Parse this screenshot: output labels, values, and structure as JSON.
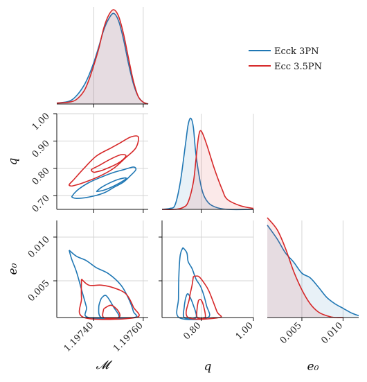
{
  "chart_data": {
    "type": "corner",
    "parameters": [
      {
        "key": "mchirp",
        "label": "𝓜",
        "range": [
          1.19725,
          1.19762
        ],
        "ticks": [
          1.1974,
          1.1976
        ],
        "tick_labels": [
          "1.19740",
          "1.19760"
        ]
      },
      {
        "key": "q",
        "label": "q",
        "range": [
          0.65,
          1.0
        ],
        "ticks": [
          0.7,
          0.8,
          0.9,
          1.0
        ],
        "tick_labels": [
          "0.70",
          "0.80",
          "0.90",
          "1.00"
        ],
        "x_ticks": [
          0.8,
          1.0
        ],
        "x_tick_labels": [
          "0.80",
          "1.00"
        ]
      },
      {
        "key": "e0",
        "label": "e₀",
        "range": [
          0.0008,
          0.0119
        ],
        "ticks": [
          0.005,
          0.01
        ],
        "tick_labels": [
          "0.005",
          "0.010"
        ]
      }
    ],
    "legend_position": "upper-right",
    "series": [
      {
        "name": "Ecck 3PN",
        "color": "#1f77b4",
        "mchirp_pdf": {
          "x": [
            1.19725,
            1.1973,
            1.19733,
            1.19736,
            1.19738,
            1.1974,
            1.19742,
            1.19744,
            1.19746,
            1.19748,
            1.1975,
            1.19752,
            1.19754,
            1.19756,
            1.19758,
            1.1976,
            1.19762
          ],
          "y": [
            0.01,
            0.03,
            0.09,
            0.2,
            0.31,
            0.45,
            0.62,
            0.8,
            0.92,
            0.98,
            0.9,
            0.7,
            0.44,
            0.22,
            0.08,
            0.02,
            0.0
          ]
        },
        "q_pdf": {
          "x": [
            0.65,
            0.68,
            0.7,
            0.72,
            0.74,
            0.75,
            0.76,
            0.77,
            0.78,
            0.8,
            0.82,
            0.85,
            0.9,
            1.0
          ],
          "y": [
            0.0,
            0.01,
            0.05,
            0.3,
            0.72,
            0.93,
            1.0,
            0.9,
            0.6,
            0.25,
            0.1,
            0.03,
            0.0,
            0.0
          ]
        },
        "e0_pdf": {
          "x": [
            0.0008,
            0.002,
            0.003,
            0.004,
            0.005,
            0.006,
            0.007,
            0.008,
            0.009,
            0.01,
            0.011,
            0.0119
          ],
          "y": [
            1.0,
            0.85,
            0.7,
            0.6,
            0.48,
            0.43,
            0.33,
            0.22,
            0.15,
            0.1,
            0.05,
            0.02
          ]
        },
        "contours_q_mchirp": [
          [
            [
              1.19731,
              0.695
            ],
            [
              1.19733,
              0.69
            ],
            [
              1.19738,
              0.695
            ],
            [
              1.19744,
              0.71
            ],
            [
              1.19748,
              0.73
            ],
            [
              1.19752,
              0.75
            ],
            [
              1.19755,
              0.775
            ],
            [
              1.19757,
              0.795
            ],
            [
              1.19756,
              0.805
            ],
            [
              1.19752,
              0.795
            ],
            [
              1.19748,
              0.785
            ],
            [
              1.19743,
              0.768
            ],
            [
              1.19738,
              0.748
            ],
            [
              1.19734,
              0.725
            ],
            [
              1.19732,
              0.708
            ],
            [
              1.19731,
              0.695
            ]
          ],
          [
            [
              1.19741,
              0.715
            ],
            [
              1.19744,
              0.72
            ],
            [
              1.19748,
              0.735
            ],
            [
              1.19752,
              0.755
            ],
            [
              1.19753,
              0.765
            ],
            [
              1.1975,
              0.76
            ],
            [
              1.19746,
              0.745
            ],
            [
              1.19743,
              0.73
            ],
            [
              1.19741,
              0.715
            ]
          ]
        ],
        "contours_e0_mchirp": [
          [
            [
              1.1973,
              0.0085
            ],
            [
              1.19733,
              0.0078
            ],
            [
              1.19737,
              0.0073
            ],
            [
              1.19741,
              0.0065
            ],
            [
              1.19746,
              0.0058
            ],
            [
              1.19751,
              0.0045
            ],
            [
              1.19754,
              0.003
            ],
            [
              1.19756,
              0.0015
            ],
            [
              1.19756,
              0.0008
            ],
            [
              1.19738,
              0.0008
            ],
            [
              1.19737,
              0.002
            ],
            [
              1.19735,
              0.004
            ],
            [
              1.19733,
              0.006
            ],
            [
              1.19731,
              0.0075
            ],
            [
              1.1973,
              0.0085
            ]
          ],
          [
            [
              1.19743,
              0.003
            ],
            [
              1.19745,
              0.0033
            ],
            [
              1.19748,
              0.002
            ],
            [
              1.1975,
              0.0008
            ],
            [
              1.19743,
              0.0008
            ],
            [
              1.19742,
              0.002
            ],
            [
              1.19743,
              0.003
            ]
          ]
        ],
        "contours_e0_q": [
          [
            [
              0.73,
              0.0088
            ],
            [
              0.745,
              0.0082
            ],
            [
              0.75,
              0.0072
            ],
            [
              0.765,
              0.0064
            ],
            [
              0.78,
              0.0052
            ],
            [
              0.8,
              0.0042
            ],
            [
              0.82,
              0.0022
            ],
            [
              0.825,
              0.0008
            ],
            [
              0.715,
              0.0008
            ],
            [
              0.713,
              0.003
            ],
            [
              0.715,
              0.006
            ],
            [
              0.72,
              0.008
            ],
            [
              0.73,
              0.0088
            ]
          ],
          [
            [
              0.74,
              0.003
            ],
            [
              0.75,
              0.0035
            ],
            [
              0.77,
              0.0022
            ],
            [
              0.78,
              0.0008
            ],
            [
              0.735,
              0.0008
            ],
            [
              0.735,
              0.002
            ],
            [
              0.74,
              0.003
            ]
          ]
        ]
      },
      {
        "name": "Ecc 3.5PN",
        "color": "#d62728",
        "mchirp_pdf": {
          "x": [
            1.19725,
            1.1973,
            1.19733,
            1.19736,
            1.19738,
            1.1974,
            1.19742,
            1.19744,
            1.19746,
            1.19748,
            1.1975,
            1.19752,
            1.19754,
            1.19756,
            1.19758,
            1.1976,
            1.19762
          ],
          "y": [
            0.01,
            0.02,
            0.05,
            0.14,
            0.26,
            0.42,
            0.6,
            0.82,
            0.96,
            1.02,
            0.95,
            0.76,
            0.5,
            0.25,
            0.08,
            0.02,
            0.0
          ]
        },
        "q_pdf": {
          "x": [
            0.65,
            0.7,
            0.73,
            0.75,
            0.77,
            0.78,
            0.79,
            0.8,
            0.82,
            0.85,
            0.88,
            0.9,
            0.95,
            1.0
          ],
          "y": [
            0.0,
            0.0,
            0.02,
            0.08,
            0.3,
            0.55,
            0.8,
            0.86,
            0.72,
            0.45,
            0.22,
            0.11,
            0.04,
            0.01
          ]
        },
        "e0_pdf": {
          "x": [
            0.0008,
            0.002,
            0.003,
            0.004,
            0.005,
            0.006,
            0.007,
            0.008,
            0.009,
            0.01
          ],
          "y": [
            1.08,
            0.95,
            0.75,
            0.5,
            0.3,
            0.15,
            0.06,
            0.02,
            0.0,
            0.0
          ]
        },
        "contours_q_mchirp": [
          [
            [
              1.19731,
              0.735
            ],
            [
              1.19735,
              0.745
            ],
            [
              1.19742,
              0.77
            ],
            [
              1.19748,
              0.8
            ],
            [
              1.19753,
              0.84
            ],
            [
              1.19757,
              0.875
            ],
            [
              1.19758,
              0.915
            ],
            [
              1.19755,
              0.915
            ],
            [
              1.19751,
              0.895
            ],
            [
              1.19747,
              0.875
            ],
            [
              1.19741,
              0.845
            ],
            [
              1.19736,
              0.8
            ],
            [
              1.19732,
              0.76
            ],
            [
              1.1973,
              0.74
            ],
            [
              1.19731,
              0.735
            ]
          ],
          [
            [
              1.1974,
              0.785
            ],
            [
              1.19744,
              0.795
            ],
            [
              1.1975,
              0.82
            ],
            [
              1.19753,
              0.845
            ],
            [
              1.19751,
              0.85
            ],
            [
              1.19747,
              0.835
            ],
            [
              1.19742,
              0.81
            ],
            [
              1.19739,
              0.795
            ],
            [
              1.1974,
              0.785
            ]
          ]
        ],
        "contours_e0_mchirp": [
          [
            [
              1.19735,
              0.0052
            ],
            [
              1.19738,
              0.0045
            ],
            [
              1.19743,
              0.0045
            ],
            [
              1.19748,
              0.0042
            ],
            [
              1.19753,
              0.0035
            ],
            [
              1.19756,
              0.002
            ],
            [
              1.19757,
              0.0008
            ],
            [
              1.19736,
              0.0008
            ],
            [
              1.19735,
              0.003
            ],
            [
              1.19735,
              0.0052
            ]
          ],
          [
            [
              1.19744,
              0.0018
            ],
            [
              1.19747,
              0.0022
            ],
            [
              1.1975,
              0.0015
            ],
            [
              1.1975,
              0.0008
            ],
            [
              1.19744,
              0.0008
            ],
            [
              1.19744,
              0.0018
            ]
          ]
        ],
        "contours_e0_q": [
          [
            [
              0.77,
              0.0055
            ],
            [
              0.79,
              0.0055
            ],
            [
              0.81,
              0.0048
            ],
            [
              0.83,
              0.0038
            ],
            [
              0.86,
              0.0015
            ],
            [
              0.87,
              0.0008
            ],
            [
              0.75,
              0.0008
            ],
            [
              0.755,
              0.003
            ],
            [
              0.765,
              0.0045
            ],
            [
              0.77,
              0.0055
            ]
          ],
          [
            [
              0.79,
              0.0028
            ],
            [
              0.8,
              0.0028
            ],
            [
              0.81,
              0.002
            ],
            [
              0.815,
              0.0008
            ],
            [
              0.785,
              0.0008
            ],
            [
              0.785,
              0.002
            ],
            [
              0.79,
              0.0028
            ]
          ]
        ]
      }
    ]
  }
}
